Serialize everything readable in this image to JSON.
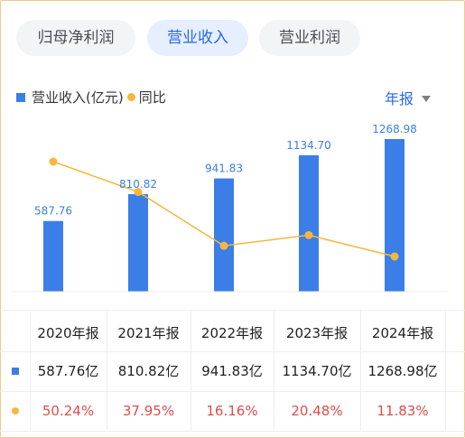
{
  "tabs": [
    {
      "label": "归母净利润",
      "active": false
    },
    {
      "label": "营业收入",
      "active": true
    },
    {
      "label": "营业利润",
      "active": false
    }
  ],
  "legend": {
    "bar_label": "营业收入(亿元)",
    "line_label": "同比"
  },
  "period_label": "年报",
  "colors": {
    "bar": "#3b7ee8",
    "line": "#f6b73c",
    "accent": "#2a67e8",
    "negative_text": "#e04b4b"
  },
  "chart_data": {
    "type": "bar",
    "categories": [
      "2020年报",
      "2021年报",
      "2022年报",
      "2023年报",
      "2024年报"
    ],
    "series": [
      {
        "name": "营业收入(亿元)",
        "type": "bar",
        "values": [
          587.76,
          810.82,
          941.83,
          1134.7,
          1268.98
        ],
        "labels": [
          "587.76",
          "810.82",
          "941.83",
          "1134.70",
          "1268.98"
        ]
      },
      {
        "name": "同比",
        "type": "line",
        "values": [
          50.24,
          37.95,
          16.16,
          20.48,
          11.83
        ]
      }
    ]
  },
  "table": {
    "headers": [
      "2020年报",
      "2021年报",
      "2022年报",
      "2023年报",
      "2024年报"
    ],
    "revenue_row": [
      "587.76亿",
      "810.82亿",
      "941.83亿",
      "1134.70亿",
      "1268.98亿"
    ],
    "yoy_row": [
      "50.24%",
      "37.95%",
      "16.16%",
      "20.48%",
      "11.83%"
    ]
  }
}
